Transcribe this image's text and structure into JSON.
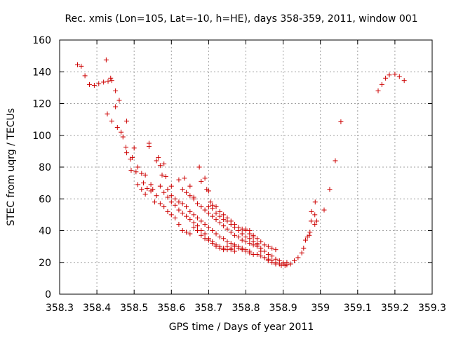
{
  "chart_data": {
    "type": "scatter",
    "title": "Rec. xmis (Lon=105, Lat=-10, h=HE), days 358-359, 2011, window 001",
    "xlabel": "GPS time / Days of year 2011",
    "ylabel": "STEC from uqrg / TECUs",
    "xlim": [
      358.3,
      359.3
    ],
    "ylim": [
      0,
      160
    ],
    "xticks": [
      358.3,
      358.4,
      358.5,
      358.6,
      358.7,
      358.8,
      358.9,
      359,
      359.1,
      359.2,
      359.3
    ],
    "xtick_labels": [
      "358.3",
      "358.4",
      "358.5",
      "358.6",
      "358.7",
      "358.8",
      "358.9",
      "359",
      "359.1",
      "359.2",
      "359.3"
    ],
    "yticks": [
      0,
      20,
      40,
      60,
      80,
      100,
      120,
      140,
      160
    ],
    "ytick_labels": [
      "0",
      "20",
      "40",
      "60",
      "80",
      "100",
      "120",
      "140",
      "160"
    ],
    "grid": true,
    "marker": "+",
    "color": "#cc0000",
    "series": [
      {
        "points": [
          [
            358.348,
            144.5
          ],
          [
            358.358,
            143.5
          ],
          [
            358.368,
            137.5
          ],
          [
            358.38,
            132
          ],
          [
            358.393,
            131.5
          ],
          [
            358.405,
            132.5
          ],
          [
            358.418,
            133.5
          ],
          [
            358.425,
            147.5
          ],
          [
            358.43,
            134
          ],
          [
            358.437,
            136
          ],
          [
            358.44,
            134.5
          ],
          [
            358.45,
            128
          ],
          [
            358.46,
            122
          ],
          [
            358.428,
            113.5
          ],
          [
            358.44,
            109
          ],
          [
            358.45,
            118
          ],
          [
            358.455,
            105
          ],
          [
            358.465,
            102
          ],
          [
            358.47,
            99
          ],
          [
            358.48,
            109
          ],
          [
            358.478,
            92.5
          ],
          [
            358.48,
            89
          ],
          [
            358.49,
            85
          ],
          [
            358.495,
            86
          ],
          [
            358.492,
            78
          ],
          [
            358.5,
            92
          ],
          [
            358.505,
            77
          ],
          [
            358.51,
            80
          ],
          [
            358.52,
            76
          ],
          [
            358.525,
            70
          ],
          [
            358.53,
            75
          ],
          [
            358.535,
            66.5
          ],
          [
            358.54,
            95
          ],
          [
            358.54,
            93
          ],
          [
            358.545,
            69
          ],
          [
            358.55,
            66
          ],
          [
            358.555,
            58
          ],
          [
            358.56,
            84
          ],
          [
            358.565,
            86
          ],
          [
            358.57,
            81
          ],
          [
            358.575,
            75
          ],
          [
            358.58,
            82
          ],
          [
            358.585,
            74
          ],
          [
            358.59,
            66
          ],
          [
            358.6,
            68
          ],
          [
            358.6,
            62
          ],
          [
            358.51,
            69
          ],
          [
            358.52,
            66
          ],
          [
            358.53,
            63
          ],
          [
            358.545,
            65
          ],
          [
            358.56,
            62
          ],
          [
            358.57,
            57
          ],
          [
            358.58,
            55
          ],
          [
            358.59,
            52
          ],
          [
            358.6,
            50
          ],
          [
            358.61,
            48
          ],
          [
            358.62,
            44
          ],
          [
            358.63,
            40
          ],
          [
            358.64,
            39
          ],
          [
            358.65,
            38
          ],
          [
            358.57,
            68
          ],
          [
            358.58,
            64
          ],
          [
            358.59,
            61
          ],
          [
            358.6,
            58
          ],
          [
            358.61,
            56
          ],
          [
            358.62,
            53
          ],
          [
            358.63,
            51
          ],
          [
            358.64,
            49
          ],
          [
            358.65,
            47
          ],
          [
            358.66,
            45
          ],
          [
            358.67,
            43
          ],
          [
            358.68,
            40
          ],
          [
            358.69,
            38
          ],
          [
            358.7,
            35
          ],
          [
            358.71,
            33
          ],
          [
            358.72,
            31
          ],
          [
            358.73,
            30
          ],
          [
            358.74,
            29
          ],
          [
            358.75,
            28
          ],
          [
            358.76,
            28
          ],
          [
            358.77,
            27
          ],
          [
            358.61,
            60
          ],
          [
            358.62,
            58
          ],
          [
            358.63,
            57
          ],
          [
            358.64,
            55
          ],
          [
            358.65,
            52
          ],
          [
            358.66,
            50
          ],
          [
            358.67,
            48
          ],
          [
            358.68,
            46
          ],
          [
            358.69,
            44
          ],
          [
            358.7,
            42
          ],
          [
            358.71,
            40
          ],
          [
            358.72,
            38
          ],
          [
            358.73,
            36
          ],
          [
            358.74,
            35
          ],
          [
            358.75,
            33
          ],
          [
            358.76,
            32
          ],
          [
            358.77,
            31
          ],
          [
            358.78,
            30
          ],
          [
            358.79,
            29
          ],
          [
            358.8,
            28
          ],
          [
            358.81,
            27
          ],
          [
            358.63,
            66
          ],
          [
            358.64,
            64
          ],
          [
            358.65,
            62
          ],
          [
            358.66,
            60
          ],
          [
            358.67,
            57
          ],
          [
            358.68,
            55
          ],
          [
            358.69,
            53
          ],
          [
            358.7,
            51
          ],
          [
            358.71,
            49
          ],
          [
            358.72,
            47
          ],
          [
            358.73,
            45
          ],
          [
            358.74,
            43
          ],
          [
            358.75,
            41
          ],
          [
            358.76,
            39
          ],
          [
            358.77,
            37
          ],
          [
            358.78,
            36
          ],
          [
            358.79,
            34
          ],
          [
            358.8,
            33
          ],
          [
            358.81,
            32
          ],
          [
            358.82,
            31
          ],
          [
            358.83,
            30
          ],
          [
            358.62,
            72
          ],
          [
            358.635,
            73
          ],
          [
            358.65,
            68
          ],
          [
            358.66,
            61
          ],
          [
            358.675,
            80
          ],
          [
            358.68,
            71
          ],
          [
            358.69,
            73
          ],
          [
            358.695,
            66
          ],
          [
            358.7,
            65
          ],
          [
            358.705,
            58
          ],
          [
            358.71,
            56
          ],
          [
            358.72,
            55
          ],
          [
            358.73,
            52
          ],
          [
            358.74,
            50
          ],
          [
            358.75,
            48
          ],
          [
            358.76,
            46
          ],
          [
            358.77,
            44
          ],
          [
            358.78,
            42
          ],
          [
            358.79,
            41
          ],
          [
            358.8,
            40
          ],
          [
            358.81,
            38
          ],
          [
            358.82,
            37
          ],
          [
            358.83,
            35
          ],
          [
            358.84,
            33
          ],
          [
            358.85,
            31
          ],
          [
            358.86,
            30
          ],
          [
            358.87,
            29
          ],
          [
            358.88,
            28
          ],
          [
            358.7,
            55
          ],
          [
            358.71,
            54
          ],
          [
            358.72,
            51
          ],
          [
            358.73,
            49
          ],
          [
            358.74,
            47
          ],
          [
            358.75,
            46
          ],
          [
            358.76,
            44
          ],
          [
            358.77,
            42
          ],
          [
            358.78,
            40
          ],
          [
            358.79,
            38
          ],
          [
            358.8,
            36
          ],
          [
            358.81,
            35
          ],
          [
            358.82,
            33
          ],
          [
            358.83,
            31
          ],
          [
            358.84,
            29
          ],
          [
            358.85,
            27
          ],
          [
            358.86,
            25
          ],
          [
            358.87,
            24
          ],
          [
            358.88,
            22
          ],
          [
            358.89,
            21
          ],
          [
            358.9,
            20
          ],
          [
            358.8,
            41
          ],
          [
            358.81,
            40
          ],
          [
            358.82,
            36
          ],
          [
            358.83,
            32
          ],
          [
            358.84,
            27
          ],
          [
            358.85,
            23
          ],
          [
            358.86,
            22
          ],
          [
            358.87,
            21
          ],
          [
            358.88,
            20
          ],
          [
            358.89,
            19
          ],
          [
            358.9,
            19
          ],
          [
            358.91,
            18.5
          ],
          [
            358.92,
            19
          ],
          [
            358.93,
            21
          ],
          [
            358.94,
            23
          ],
          [
            358.95,
            26
          ],
          [
            358.955,
            29
          ],
          [
            358.96,
            34
          ],
          [
            358.965,
            36
          ],
          [
            358.97,
            37
          ],
          [
            358.972,
            39
          ],
          [
            358.975,
            46
          ],
          [
            358.976,
            52
          ],
          [
            358.985,
            50
          ],
          [
            358.986,
            58
          ],
          [
            358.985,
            44
          ],
          [
            358.99,
            46
          ],
          [
            359.01,
            53
          ],
          [
            359.025,
            66
          ],
          [
            359.04,
            84
          ],
          [
            359.055,
            108.5
          ],
          [
            359.155,
            128
          ],
          [
            359.165,
            132
          ],
          [
            359.175,
            136
          ],
          [
            359.185,
            138
          ],
          [
            359.2,
            138.5
          ],
          [
            359.212,
            137
          ],
          [
            359.225,
            134.5
          ],
          [
            358.66,
            42
          ],
          [
            358.67,
            40
          ],
          [
            358.68,
            37
          ],
          [
            358.69,
            35
          ],
          [
            358.7,
            34
          ],
          [
            358.71,
            32
          ],
          [
            358.72,
            30
          ],
          [
            358.73,
            29
          ],
          [
            358.74,
            28
          ],
          [
            358.75,
            30
          ],
          [
            358.76,
            29
          ],
          [
            358.77,
            30
          ],
          [
            358.78,
            29
          ],
          [
            358.79,
            28
          ],
          [
            358.8,
            27
          ],
          [
            358.81,
            26
          ],
          [
            358.82,
            25
          ],
          [
            358.83,
            25
          ],
          [
            358.84,
            24
          ],
          [
            358.85,
            23
          ],
          [
            358.86,
            21
          ],
          [
            358.87,
            20
          ],
          [
            358.88,
            19
          ],
          [
            358.895,
            18
          ],
          [
            358.905,
            18
          ],
          [
            358.91,
            20
          ]
        ]
      }
    ]
  }
}
